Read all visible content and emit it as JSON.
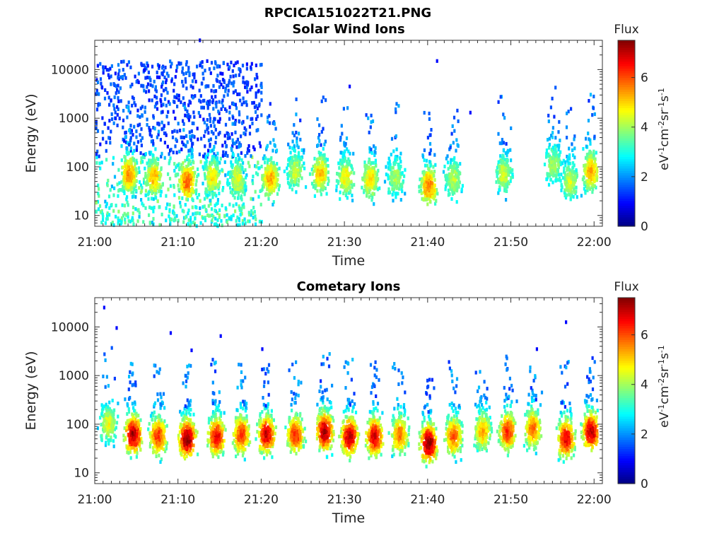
{
  "figure_title": "RPCICA151022T21.PNG",
  "chart_data": [
    {
      "type": "heatmap",
      "title": "Solar Wind Ions",
      "xlabel": "Time",
      "ylabel": "Energy (eV)",
      "x_ticks": [
        "21:00",
        "21:10",
        "21:20",
        "21:30",
        "21:40",
        "21:50",
        "22:00"
      ],
      "x_range": [
        "21:00",
        "22:01"
      ],
      "y_scale": "log",
      "y_ticks": [
        "10",
        "100",
        "1000",
        "10000"
      ],
      "y_range": [
        6,
        40000
      ],
      "colorbar": {
        "label_top": "Flux",
        "unit": "eV-1cm-2sr-1s-1",
        "ticks": [
          "0",
          "2",
          "4",
          "6"
        ],
        "range": [
          0,
          7.5
        ]
      },
      "features": {
        "solar_wind_block": {
          "time_start_min": 0,
          "time_end_min": 20,
          "energy_range_eV": [
            6,
            15000
          ],
          "flux_level": 1
        },
        "scatter_points": [
          {
            "t_min": 12.5,
            "energy_eV": 40000,
            "flux": 1
          },
          {
            "t_min": 41,
            "energy_eV": 15000,
            "flux": 1
          },
          {
            "t_min": 30.5,
            "energy_eV": 4500,
            "flux": 1
          },
          {
            "t_min": 45,
            "energy_eV": 1300,
            "flux": 1
          },
          {
            "t_min": 59.8,
            "energy_eV": 1600,
            "flux": 1.5
          }
        ],
        "bursts": [
          {
            "t_min": 4,
            "peak_eV": 70,
            "strength": 4.8
          },
          {
            "t_min": 7,
            "peak_eV": 60,
            "strength": 4.5
          },
          {
            "t_min": 11,
            "peak_eV": 50,
            "strength": 5.2
          },
          {
            "t_min": 14,
            "peak_eV": 60,
            "strength": 4.0
          },
          {
            "t_min": 17,
            "peak_eV": 55,
            "strength": 3.8
          },
          {
            "t_min": 21,
            "peak_eV": 55,
            "strength": 4.6
          },
          {
            "t_min": 24,
            "peak_eV": 80,
            "strength": 3.5
          },
          {
            "t_min": 27,
            "peak_eV": 70,
            "strength": 4.4
          },
          {
            "t_min": 30,
            "peak_eV": 60,
            "strength": 4.0
          },
          {
            "t_min": 33,
            "peak_eV": 55,
            "strength": 4.2
          },
          {
            "t_min": 36,
            "peak_eV": 60,
            "strength": 3.3
          },
          {
            "t_min": 40,
            "peak_eV": 40,
            "strength": 5.0
          },
          {
            "t_min": 43,
            "peak_eV": 55,
            "strength": 3.5
          },
          {
            "t_min": 49,
            "peak_eV": 70,
            "strength": 3.6
          },
          {
            "t_min": 55,
            "peak_eV": 110,
            "strength": 3.3
          },
          {
            "t_min": 57,
            "peak_eV": 50,
            "strength": 3.6
          },
          {
            "t_min": 59.5,
            "peak_eV": 80,
            "strength": 4.6
          }
        ]
      }
    },
    {
      "type": "heatmap",
      "title": "Cometary Ions",
      "xlabel": "Time",
      "ylabel": "Energy (eV)",
      "x_ticks": [
        "21:00",
        "21:10",
        "21:20",
        "21:30",
        "21:40",
        "21:50",
        "22:00"
      ],
      "x_range": [
        "21:00",
        "22:01"
      ],
      "y_scale": "log",
      "y_ticks": [
        "10",
        "100",
        "1000",
        "10000"
      ],
      "y_range": [
        6,
        40000
      ],
      "colorbar": {
        "label_top": "Flux",
        "unit": "eV-1cm-2sr-1s-1",
        "ticks": [
          "0",
          "2",
          "4",
          "6"
        ],
        "range": [
          0,
          7.5
        ]
      },
      "features": {
        "scatter_points": [
          {
            "t_min": 1,
            "energy_eV": 25000,
            "flux": 1
          },
          {
            "t_min": 2.5,
            "energy_eV": 9500,
            "flux": 1
          },
          {
            "t_min": 9,
            "energy_eV": 7500,
            "flux": 1
          },
          {
            "t_min": 11.5,
            "energy_eV": 3300,
            "flux": 1
          },
          {
            "t_min": 15,
            "energy_eV": 6500,
            "flux": 1
          },
          {
            "t_min": 20,
            "energy_eV": 3500,
            "flux": 1
          },
          {
            "t_min": 56.5,
            "energy_eV": 12500,
            "flux": 1
          },
          {
            "t_min": 53,
            "energy_eV": 3500,
            "flux": 1
          }
        ],
        "bursts": [
          {
            "t_min": 1.5,
            "peak_eV": 100,
            "strength": 3.8
          },
          {
            "t_min": 4.5,
            "peak_eV": 60,
            "strength": 6.5
          },
          {
            "t_min": 7.5,
            "peak_eV": 55,
            "strength": 5.5
          },
          {
            "t_min": 11,
            "peak_eV": 50,
            "strength": 6.8
          },
          {
            "t_min": 14.5,
            "peak_eV": 55,
            "strength": 6.0
          },
          {
            "t_min": 17.5,
            "peak_eV": 60,
            "strength": 5.5
          },
          {
            "t_min": 20.5,
            "peak_eV": 60,
            "strength": 6.2
          },
          {
            "t_min": 24,
            "peak_eV": 60,
            "strength": 5.6
          },
          {
            "t_min": 27.5,
            "peak_eV": 70,
            "strength": 6.5
          },
          {
            "t_min": 30.5,
            "peak_eV": 55,
            "strength": 6.4
          },
          {
            "t_min": 33.5,
            "peak_eV": 55,
            "strength": 6.2
          },
          {
            "t_min": 36.5,
            "peak_eV": 60,
            "strength": 5.0
          },
          {
            "t_min": 40,
            "peak_eV": 40,
            "strength": 6.8
          },
          {
            "t_min": 43,
            "peak_eV": 55,
            "strength": 5.2
          },
          {
            "t_min": 46.5,
            "peak_eV": 70,
            "strength": 4.6
          },
          {
            "t_min": 49.5,
            "peak_eV": 70,
            "strength": 5.6
          },
          {
            "t_min": 52.5,
            "peak_eV": 80,
            "strength": 5.0
          },
          {
            "t_min": 56.5,
            "peak_eV": 50,
            "strength": 6.0
          },
          {
            "t_min": 59.5,
            "peak_eV": 70,
            "strength": 6.4
          }
        ]
      }
    }
  ]
}
